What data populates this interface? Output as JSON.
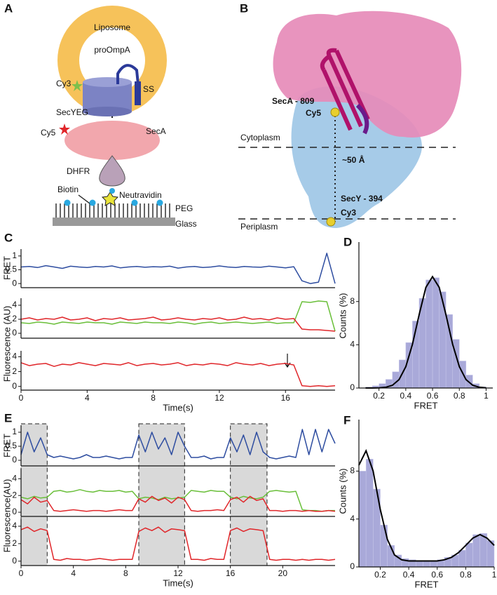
{
  "diagram_a": {
    "panel": "A",
    "labels": {
      "liposome": "Liposome",
      "proompa": "proOmpA",
      "cy3": "Cy3",
      "ss": "SS",
      "secyeg": "SecYEG",
      "cy5": "Cy5",
      "seca": "SecA",
      "dhfr": "DHFR",
      "biotin": "Biotin",
      "neutravidin": "Neutravidin",
      "peg": "PEG",
      "glass": "Glass"
    }
  },
  "diagram_b": {
    "panel": "B",
    "labels": {
      "seca_809": "SecA - 809",
      "cy5": "Cy5",
      "cytoplasm": "Cytoplasm",
      "distance": "~50 Å",
      "secy_394": "SecY - 394",
      "cy3": "Cy3",
      "periplasm": "Periplasm"
    }
  },
  "chart_data": [
    {
      "type": "line",
      "panel": "C",
      "ylabel": "FRET",
      "xlim": [
        0,
        19
      ],
      "ylim": [
        -0.15,
        1.25
      ],
      "yticks": [
        0,
        0.5,
        1
      ],
      "x": [
        0,
        0.5,
        1,
        1.5,
        2,
        2.5,
        3,
        3.5,
        4,
        4.5,
        5,
        5.5,
        6,
        6.5,
        7,
        7.5,
        8,
        8.5,
        9,
        9.5,
        10,
        10.5,
        11,
        11.5,
        12,
        12.5,
        13,
        13.5,
        14,
        14.5,
        15,
        15.5,
        16,
        16.5,
        17,
        17.5,
        18,
        18.5,
        19
      ],
      "series": [
        {
          "color": "#2e4da0",
          "values": [
            0.6,
            0.62,
            0.58,
            0.65,
            0.6,
            0.55,
            0.63,
            0.6,
            0.58,
            0.62,
            0.6,
            0.64,
            0.57,
            0.6,
            0.62,
            0.59,
            0.61,
            0.6,
            0.63,
            0.56,
            0.6,
            0.62,
            0.58,
            0.6,
            0.64,
            0.6,
            0.58,
            0.62,
            0.6,
            0.59,
            0.63,
            0.6,
            0.57,
            0.61,
            0.1,
            0.0,
            0.05,
            1.1,
            0.0
          ]
        }
      ]
    },
    {
      "type": "line",
      "ylabel": "Fluorescence (AU)",
      "xlim": [
        0,
        19
      ],
      "ylim": [
        -0.7,
        5.0
      ],
      "yticks": [
        0,
        2,
        4
      ],
      "x": [
        0,
        0.5,
        1,
        1.5,
        2,
        2.5,
        3,
        3.5,
        4,
        4.5,
        5,
        5.5,
        6,
        6.5,
        7,
        7.5,
        8,
        8.5,
        9,
        9.5,
        10,
        10.5,
        11,
        11.5,
        12,
        12.5,
        13,
        13.5,
        14,
        14.5,
        15,
        15.5,
        16,
        16.5,
        17,
        17.5,
        18,
        18.5,
        19
      ],
      "series": [
        {
          "color": "#6abf3a",
          "values": [
            1.5,
            1.4,
            1.6,
            1.5,
            1.3,
            1.6,
            1.5,
            1.4,
            1.6,
            1.5,
            1.5,
            1.3,
            1.6,
            1.5,
            1.4,
            1.6,
            1.5,
            1.5,
            1.4,
            1.6,
            1.5,
            1.3,
            1.5,
            1.6,
            1.4,
            1.5,
            1.6,
            1.5,
            1.4,
            1.5,
            1.6,
            1.4,
            1.5,
            1.5,
            4.5,
            4.4,
            4.6,
            4.5,
            0.3
          ]
        },
        {
          "color": "#e0262a",
          "values": [
            2.0,
            2.2,
            1.9,
            2.1,
            2.0,
            2.3,
            1.9,
            2.0,
            2.2,
            1.8,
            2.1,
            2.0,
            2.2,
            1.9,
            2.0,
            2.1,
            2.3,
            1.9,
            2.0,
            2.2,
            2.0,
            1.9,
            2.1,
            2.0,
            2.2,
            1.9,
            2.0,
            2.3,
            2.0,
            2.1,
            1.9,
            2.2,
            2.0,
            2.1,
            0.6,
            0.5,
            0.5,
            0.4,
            0.3
          ]
        }
      ]
    },
    {
      "type": "line",
      "xlabel": "Time(s)",
      "xlim": [
        0,
        19
      ],
      "ylim": [
        -0.5,
        4.8
      ],
      "xticks": [
        0,
        4,
        8,
        12,
        16
      ],
      "yticks": [
        0,
        2,
        4
      ],
      "x": [
        0,
        0.5,
        1,
        1.5,
        2,
        2.5,
        3,
        3.5,
        4,
        4.5,
        5,
        5.5,
        6,
        6.5,
        7,
        7.5,
        8,
        8.5,
        9,
        9.5,
        10,
        10.5,
        11,
        11.5,
        12,
        12.5,
        13,
        13.5,
        14,
        14.5,
        15,
        15.5,
        16,
        16.5,
        17,
        17.5,
        18,
        18.5,
        19
      ],
      "series": [
        {
          "color": "#e0262a",
          "values": [
            3.2,
            2.8,
            3.0,
            3.1,
            2.7,
            3.0,
            2.9,
            3.2,
            3.0,
            2.8,
            3.1,
            3.0,
            2.9,
            3.2,
            2.8,
            3.0,
            3.1,
            2.9,
            3.0,
            3.2,
            2.8,
            3.0,
            2.9,
            3.1,
            3.0,
            2.8,
            3.2,
            3.0,
            2.9,
            3.1,
            2.8,
            3.0,
            3.1,
            2.9,
            0.1,
            0.0,
            0.1,
            0.0,
            0.1
          ]
        }
      ]
    },
    {
      "type": "histogram",
      "panel": "D",
      "xlabel": "FRET",
      "ylabel": "Counts (%)",
      "color": "#a9a9d9",
      "xlim": [
        0.05,
        1.05
      ],
      "ylim": [
        0,
        13.5
      ],
      "xticks": [
        0.2,
        0.4,
        0.6,
        0.8,
        1
      ],
      "yticks": [
        0,
        4,
        8
      ],
      "bins": [
        0.1,
        0.15,
        0.2,
        0.25,
        0.3,
        0.35,
        0.4,
        0.45,
        0.5,
        0.55,
        0.6,
        0.65,
        0.7,
        0.75,
        0.8,
        0.85,
        0.9,
        0.95,
        1.0
      ],
      "values": [
        0.1,
        0.2,
        0.4,
        0.8,
        1.5,
        2.6,
        4.2,
        6.2,
        8.3,
        10.0,
        10.2,
        8.9,
        6.8,
        4.5,
        2.5,
        1.2,
        0.4,
        0.1
      ],
      "fit": {
        "color": "#000000",
        "x": [
          0.1,
          0.15,
          0.2,
          0.25,
          0.3,
          0.35,
          0.4,
          0.45,
          0.5,
          0.55,
          0.6,
          0.65,
          0.7,
          0.75,
          0.8,
          0.85,
          0.9,
          0.95,
          1.0
        ],
        "values": [
          0,
          0,
          0.01,
          0.07,
          0.25,
          0.78,
          1.97,
          4.05,
          6.8,
          9.3,
          10.3,
          9.3,
          6.8,
          4.05,
          1.97,
          0.78,
          0.25,
          0.07,
          0.01
        ]
      }
    },
    {
      "type": "line",
      "panel": "E",
      "ylabel": "FRET",
      "xlim": [
        0,
        24
      ],
      "ylim": [
        -0.2,
        1.25
      ],
      "yticks": [
        0,
        0.5,
        1
      ],
      "shaded": [
        [
          0,
          2
        ],
        [
          9,
          12.5
        ],
        [
          16,
          18.8
        ]
      ],
      "x": [
        0,
        0.5,
        1,
        1.5,
        2,
        2.5,
        3,
        3.5,
        4,
        4.5,
        5,
        5.5,
        6,
        6.5,
        7,
        7.5,
        8,
        8.5,
        9,
        9.5,
        10,
        10.5,
        11,
        11.5,
        12,
        12.5,
        13,
        13.5,
        14,
        14.5,
        15,
        15.5,
        16,
        16.5,
        17,
        17.5,
        18,
        18.5,
        19,
        19.5,
        20,
        20.5,
        21,
        21.5,
        22,
        22.5,
        23,
        23.5,
        24
      ],
      "series": [
        {
          "color": "#2e4da0",
          "values": [
            0.2,
            1.0,
            0.3,
            0.8,
            0.2,
            0.1,
            0.15,
            0.1,
            0.05,
            0.1,
            0.2,
            0.1,
            0.1,
            0.15,
            0.1,
            0.05,
            0.1,
            0.1,
            0.9,
            0.3,
            1.0,
            0.4,
            0.8,
            0.2,
            1.0,
            0.5,
            0.1,
            0.1,
            0.15,
            0.05,
            0.1,
            0.1,
            0.8,
            0.3,
            0.9,
            0.2,
            1.0,
            0.3,
            0.1,
            0.05,
            0.1,
            0.15,
            0.1,
            1.1,
            0.2,
            1.1,
            0.3,
            1.1,
            0.6
          ]
        }
      ]
    },
    {
      "type": "line",
      "ylabel": "Fluorescence(AU)",
      "xlim": [
        0,
        24
      ],
      "ylim": [
        -0.5,
        5.2
      ],
      "yticks": [
        0,
        2,
        4
      ],
      "x": [
        0,
        0.5,
        1,
        1.5,
        2,
        2.5,
        3,
        3.5,
        4,
        4.5,
        5,
        5.5,
        6,
        6.5,
        7,
        7.5,
        8,
        8.5,
        9,
        9.5,
        10,
        10.5,
        11,
        11.5,
        12,
        12.5,
        13,
        13.5,
        14,
        14.5,
        15,
        15.5,
        16,
        16.5,
        17,
        17.5,
        18,
        18.5,
        19,
        19.5,
        20,
        20.5,
        21,
        21.5,
        22,
        22.5,
        23,
        23.5,
        24
      ],
      "series": [
        {
          "color": "#6abf3a",
          "values": [
            1.8,
            1.6,
            1.9,
            1.7,
            1.8,
            2.5,
            2.6,
            2.4,
            2.5,
            2.7,
            2.5,
            2.4,
            2.6,
            2.5,
            2.5,
            2.6,
            2.4,
            2.5,
            1.6,
            1.8,
            1.7,
            1.5,
            1.8,
            1.6,
            1.7,
            1.8,
            2.6,
            2.5,
            2.4,
            2.6,
            2.5,
            2.5,
            1.8,
            1.6,
            1.9,
            1.7,
            1.6,
            1.8,
            2.5,
            2.6,
            2.5,
            2.4,
            2.5,
            0.3,
            0.2,
            0.2,
            0.1,
            0.2,
            0.2
          ]
        },
        {
          "color": "#e0262a",
          "values": [
            1.5,
            1.0,
            1.8,
            1.2,
            1.4,
            0.2,
            0.1,
            0.2,
            0.3,
            0.2,
            0.1,
            0.2,
            0.2,
            0.1,
            0.2,
            0.3,
            0.2,
            0.2,
            1.6,
            1.2,
            1.9,
            1.4,
            1.7,
            1.1,
            1.8,
            1.5,
            0.2,
            0.1,
            0.2,
            0.2,
            0.3,
            0.2,
            1.5,
            1.8,
            1.2,
            1.9,
            1.4,
            1.6,
            0.2,
            0.2,
            0.1,
            0.2,
            0.2,
            0.1,
            0.2,
            0.1,
            0.1,
            0.2,
            0.1
          ]
        }
      ]
    },
    {
      "type": "line",
      "xlabel": "Time(s)",
      "xlim": [
        0,
        24
      ],
      "ylim": [
        -0.5,
        4.8
      ],
      "xticks": [
        0,
        4,
        8,
        12,
        16,
        20
      ],
      "yticks": [
        0,
        2,
        4
      ],
      "x": [
        0,
        0.5,
        1,
        1.5,
        2,
        2.5,
        3,
        3.5,
        4,
        4.5,
        5,
        5.5,
        6,
        6.5,
        7,
        7.5,
        8,
        8.5,
        9,
        9.5,
        10,
        10.5,
        11,
        11.5,
        12,
        12.5,
        13,
        13.5,
        14,
        14.5,
        15,
        15.5,
        16,
        16.5,
        17,
        17.5,
        18,
        18.5,
        19,
        19.5,
        20,
        20.5,
        21,
        21.5,
        22,
        22.5,
        23,
        23.5,
        24
      ],
      "series": [
        {
          "color": "#e0262a",
          "values": [
            3.6,
            3.9,
            3.4,
            3.7,
            3.5,
            0.2,
            0.1,
            0.3,
            0.2,
            0.2,
            0.1,
            0.2,
            0.3,
            0.2,
            0.1,
            0.2,
            0.2,
            0.2,
            3.4,
            3.8,
            3.5,
            3.9,
            3.3,
            3.7,
            3.6,
            3.5,
            0.2,
            0.2,
            0.1,
            0.3,
            0.2,
            0.2,
            3.5,
            3.8,
            3.4,
            3.7,
            3.6,
            3.5,
            0.2,
            0.1,
            0.2,
            0.2,
            0.1,
            0.2,
            0.1,
            0.2,
            0.2,
            0.1,
            0.2
          ]
        }
      ]
    },
    {
      "type": "histogram",
      "panel": "F",
      "xlabel": "FRET",
      "ylabel": "Counts (%)",
      "color": "#a9a9d9",
      "xlim": [
        0.05,
        1.0
      ],
      "ylim": [
        0,
        12.3
      ],
      "xticks": [
        0.2,
        0.4,
        0.6,
        0.8,
        1
      ],
      "yticks": [
        0,
        4,
        8
      ],
      "bins": [
        0.05,
        0.1,
        0.15,
        0.2,
        0.25,
        0.3,
        0.35,
        0.4,
        0.45,
        0.5,
        0.55,
        0.6,
        0.65,
        0.7,
        0.75,
        0.8,
        0.85,
        0.9,
        0.95,
        1.0
      ],
      "values": [
        8.0,
        9.0,
        6.5,
        3.5,
        1.8,
        1.0,
        0.7,
        0.6,
        0.5,
        0.5,
        0.5,
        0.6,
        0.8,
        1.0,
        1.4,
        2.0,
        2.7,
        2.8,
        2.2
      ],
      "fit": {
        "color": "#000000",
        "x": [
          0.05,
          0.1,
          0.15,
          0.2,
          0.25,
          0.3,
          0.35,
          0.4,
          0.45,
          0.5,
          0.55,
          0.6,
          0.65,
          0.7,
          0.75,
          0.8,
          0.85,
          0.9,
          0.95,
          1.0
        ],
        "values": [
          8.5,
          9.7,
          8.0,
          4.8,
          2.3,
          1.0,
          0.6,
          0.5,
          0.5,
          0.5,
          0.5,
          0.5,
          0.6,
          0.8,
          1.2,
          1.8,
          2.4,
          2.7,
          2.4,
          1.8
        ]
      }
    }
  ]
}
